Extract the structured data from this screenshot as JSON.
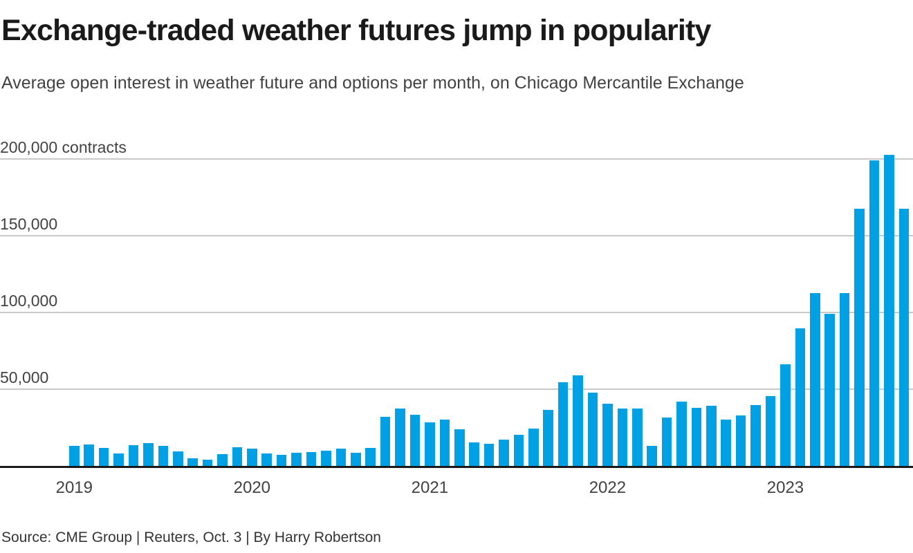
{
  "header": {
    "title": "Exchange-traded weather futures jump in popularity",
    "subtitle": "Average open interest in weather future and options per month, on Chicago Mercantile Exchange"
  },
  "footer": {
    "source": "Source: CME Group | Reuters, Oct. 3 | By Harry Robertson"
  },
  "chart_data": {
    "type": "bar",
    "title": "Exchange-traded weather futures jump in popularity",
    "subtitle": "Average open interest in weather future and options per month, on Chicago Mercantile Exchange",
    "xlabel": "",
    "ylabel": "contracts",
    "ylim": [
      0,
      210000
    ],
    "grid": true,
    "legend": "none",
    "bar_color": "#00a0e4",
    "gridline_color": "#c9c9c9",
    "axis_color": "#1a1a1a",
    "yticks": [
      {
        "value": 50000,
        "label": "50,000"
      },
      {
        "value": 100000,
        "label": "100,000"
      },
      {
        "value": 150000,
        "label": "150,000"
      },
      {
        "value": 200000,
        "label": "200,000 contracts"
      }
    ],
    "x_year_labels": [
      "2019",
      "2020",
      "2021",
      "2022",
      "2023"
    ],
    "x": [
      "Jan 2019",
      "Feb 2019",
      "Mar 2019",
      "Apr 2019",
      "May 2019",
      "Jun 2019",
      "Jul 2019",
      "Aug 2019",
      "Sep 2019",
      "Oct 2019",
      "Nov 2019",
      "Dec 2019",
      "Jan 2020",
      "Feb 2020",
      "Mar 2020",
      "Apr 2020",
      "May 2020",
      "Jun 2020",
      "Jul 2020",
      "Aug 2020",
      "Sep 2020",
      "Oct 2020",
      "Nov 2020",
      "Dec 2020",
      "Jan 2021",
      "Feb 2021",
      "Mar 2021",
      "Apr 2021",
      "May 2021",
      "Jun 2021",
      "Jul 2021",
      "Aug 2021",
      "Sep 2021",
      "Oct 2021",
      "Nov 2021",
      "Dec 2021",
      "Jan 2022",
      "Feb 2022",
      "Mar 2022",
      "Apr 2022",
      "May 2022",
      "Jun 2022",
      "Jul 2022",
      "Aug 2022",
      "Sep 2022",
      "Oct 2022",
      "Nov 2022",
      "Dec 2022",
      "Jan 2023",
      "Feb 2023",
      "Mar 2023",
      "Apr 2023",
      "May 2023",
      "Jun 2023",
      "Jul 2023",
      "Aug 2023",
      "Sep 2023"
    ],
    "series": [
      {
        "name": "Average open interest (contracts)",
        "values": [
          12900,
          14000,
          11700,
          7900,
          13400,
          14700,
          13100,
          9300,
          4800,
          3900,
          7500,
          12200,
          11200,
          8000,
          7100,
          8500,
          9000,
          9900,
          11100,
          8400,
          11800,
          32000,
          37500,
          33400,
          28500,
          30100,
          23800,
          15500,
          14300,
          17100,
          20500,
          24500,
          36400,
          54500,
          59000,
          48000,
          40500,
          37400,
          37400,
          13200,
          31500,
          42000,
          38000,
          39100,
          30300,
          32900,
          39700,
          45400,
          66400,
          89600,
          112700,
          99300,
          112500,
          167800,
          199500,
          202800,
          167800
        ]
      }
    ]
  }
}
